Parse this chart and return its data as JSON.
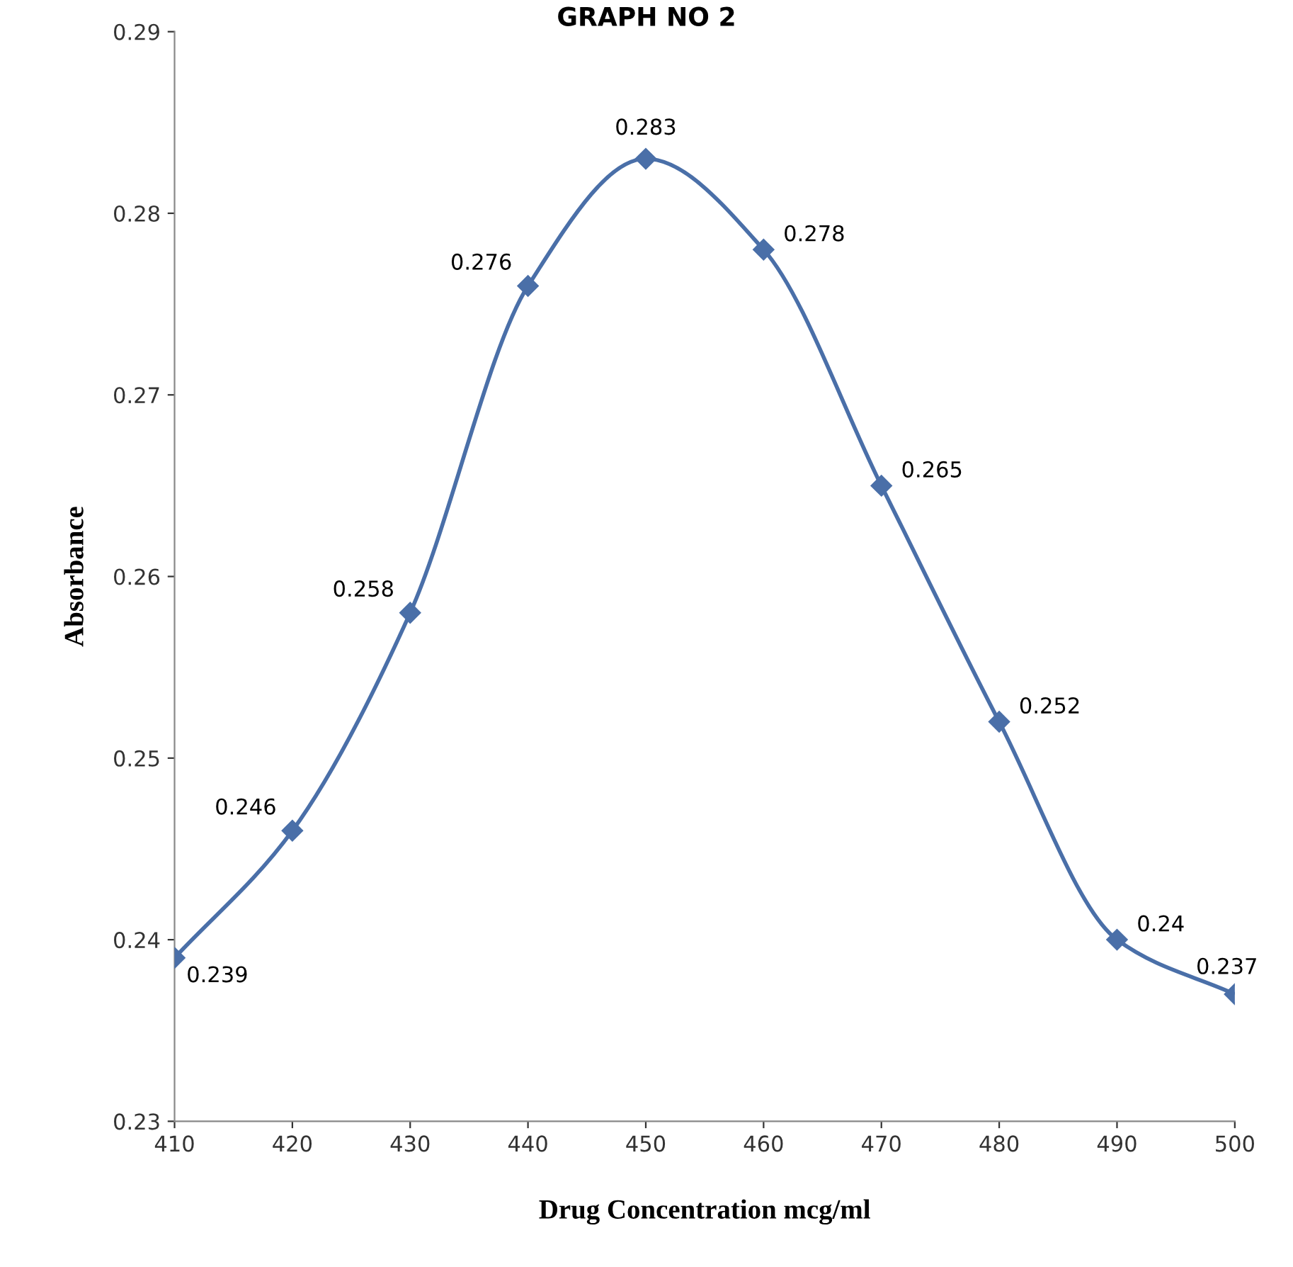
{
  "chart_data": {
    "type": "line",
    "title": "GRAPH NO 2",
    "xlabel": "Drug Concentration mcg/ml",
    "ylabel": "Absorbance",
    "x": [
      410,
      420,
      430,
      440,
      450,
      460,
      470,
      480,
      490,
      500
    ],
    "series": [
      {
        "color": "#4a6fa8",
        "values": [
          0.239,
          0.246,
          0.258,
          0.276,
          0.283,
          0.278,
          0.265,
          0.252,
          0.24,
          0.237
        ]
      }
    ],
    "xlim": [
      410,
      500
    ],
    "xticks": [
      410,
      420,
      430,
      440,
      450,
      460,
      470,
      480,
      490,
      500
    ],
    "ylim": [
      0.23,
      0.29
    ],
    "yticks": [
      0.23,
      0.24,
      0.25,
      0.26,
      0.27,
      0.28,
      0.29
    ],
    "data_labels": true,
    "marker": "diamond",
    "line_style": "solid",
    "grid": false,
    "legend": false
  }
}
